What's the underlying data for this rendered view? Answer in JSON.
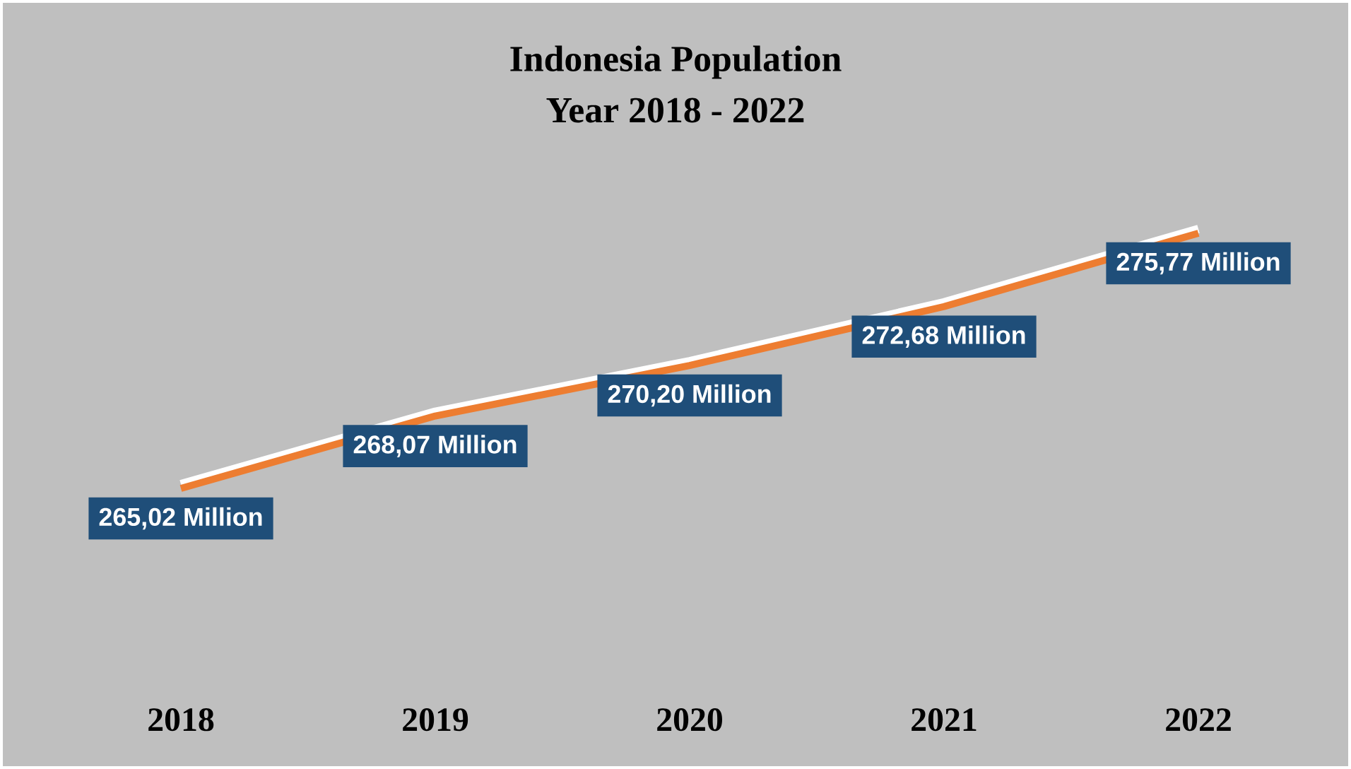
{
  "chart_data": {
    "type": "line",
    "title": "Indonesia Population",
    "subtitle": "Year 2018 - 2022",
    "categories": [
      "2018",
      "2019",
      "2020",
      "2021",
      "2022"
    ],
    "series": [
      {
        "color": "#ed7d31",
        "values": [
          265.02,
          268.07,
          270.2,
          272.68,
          275.77
        ],
        "value_labels": [
          "265,02 Million",
          "268,07 Million",
          "270,20 Million",
          "272,68 Million",
          "275,77 Million"
        ]
      }
    ],
    "marker": "none",
    "line_style": "solid"
  }
}
